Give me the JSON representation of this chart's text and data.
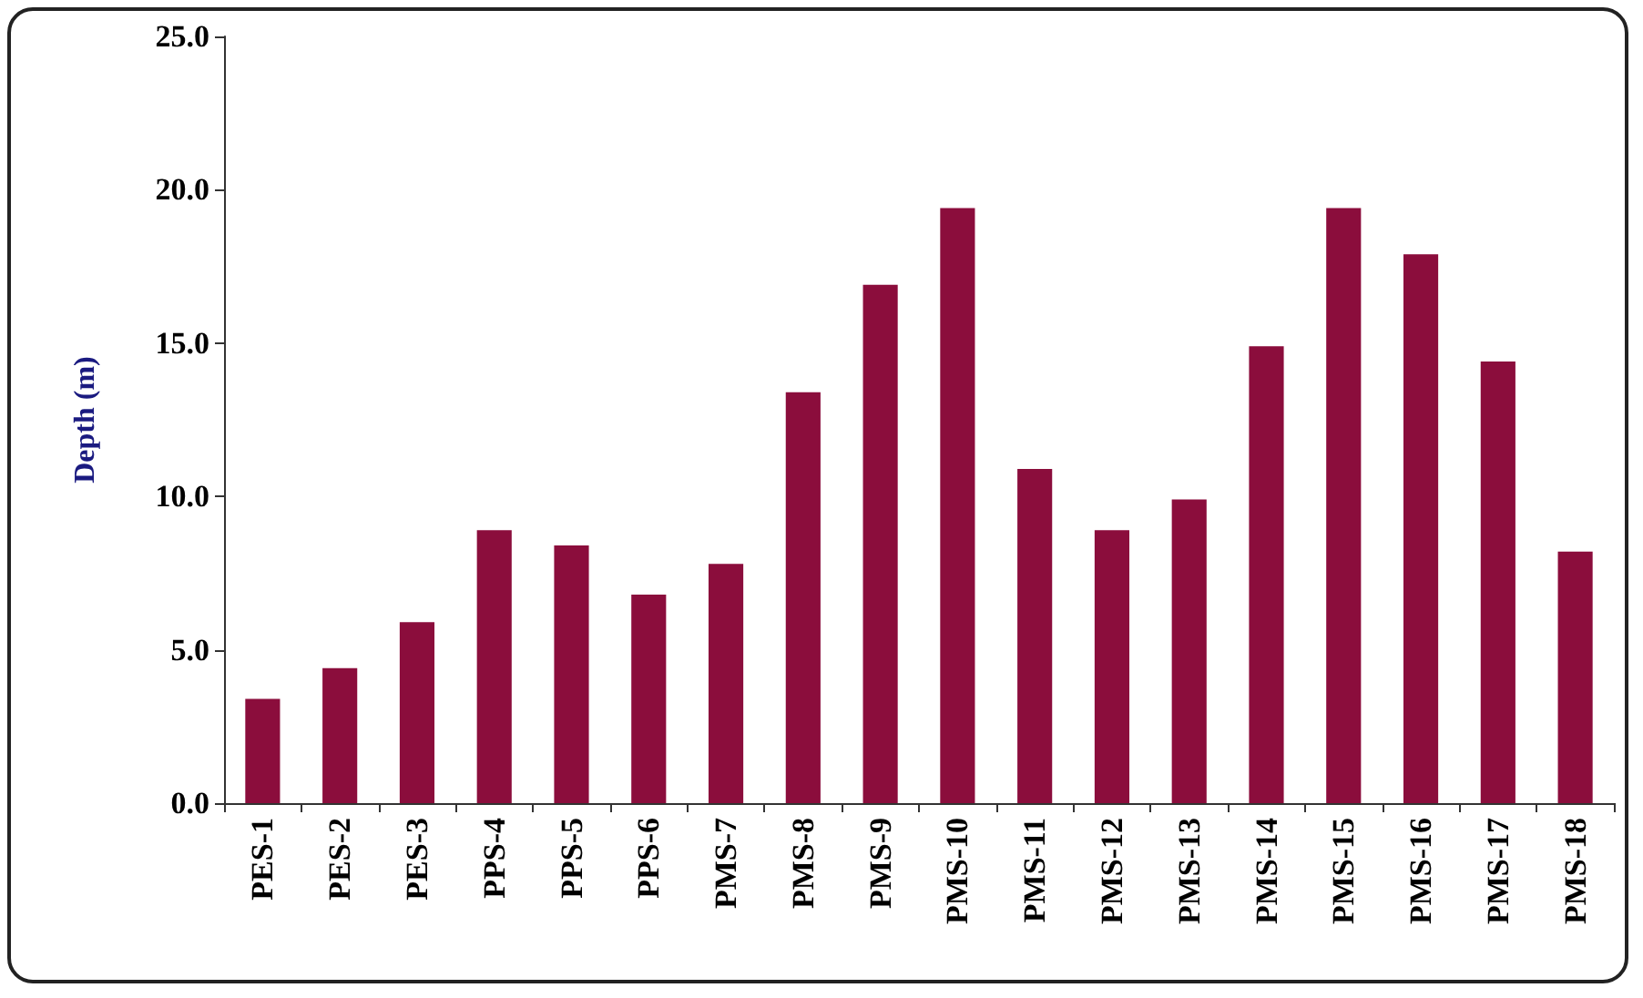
{
  "chart_data": {
    "type": "bar",
    "ylabel": "Depth (m)",
    "categories": [
      "PES-1",
      "PES-2",
      "PES-3",
      "PPS-4",
      "PPS-5",
      "PPS-6",
      "PMS-7",
      "PMS-8",
      "PMS-9",
      "PMS-10",
      "PMS-11",
      "PMS-12",
      "PMS-13",
      "PMS-14",
      "PMS-15",
      "PMS-16",
      "PMS-17",
      "PMS-18"
    ],
    "values": [
      3.4,
      4.4,
      5.9,
      8.9,
      8.4,
      6.8,
      7.8,
      13.4,
      16.9,
      19.4,
      10.9,
      8.9,
      9.9,
      14.9,
      19.4,
      17.9,
      14.4,
      8.2
    ],
    "color": "#8b0d3c",
    "ylim": [
      0,
      25
    ],
    "yticks": [
      {
        "value": 0,
        "label": "0.0"
      },
      {
        "value": 5,
        "label": "5.0"
      },
      {
        "value": 10,
        "label": "10.0"
      },
      {
        "value": 15,
        "label": "15.0"
      },
      {
        "value": 20,
        "label": "20.0"
      },
      {
        "value": 25,
        "label": "25.0"
      }
    ],
    "grid": false
  }
}
